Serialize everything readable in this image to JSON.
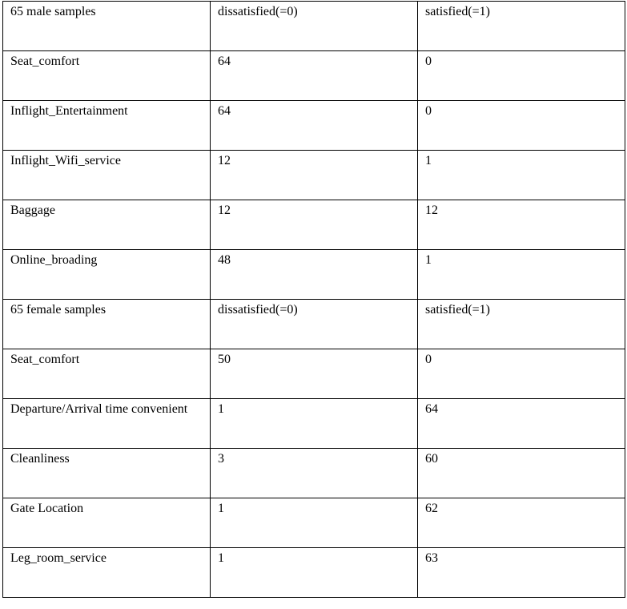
{
  "table": {
    "rows": [
      [
        "65 male samples",
        "dissatisfied(=0)",
        "satisfied(=1)"
      ],
      [
        "Seat_comfort",
        "64",
        "0"
      ],
      [
        "Inflight_Entertainment",
        "64",
        "0"
      ],
      [
        "Inflight_Wifi_service",
        "12",
        "1"
      ],
      [
        "Baggage",
        "12",
        "12"
      ],
      [
        "Online_broading",
        "48",
        "1"
      ],
      [
        "65 female samples",
        "dissatisfied(=0)",
        "satisfied(=1)"
      ],
      [
        "Seat_comfort",
        "50",
        "0"
      ],
      [
        "Departure/Arrival time convenient",
        "1",
        "64"
      ],
      [
        "Cleanliness",
        "3",
        "60"
      ],
      [
        "Gate Location",
        "1",
        "62"
      ],
      [
        "Leg_room_service",
        "1",
        "63"
      ]
    ]
  }
}
